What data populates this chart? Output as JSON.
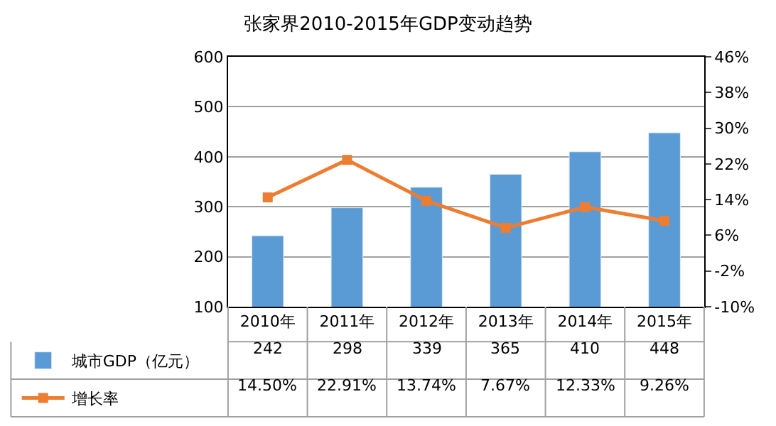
{
  "chart_data": {
    "type": "bar",
    "title": "张家界2010-2015年GDP变动趋势",
    "categories": [
      "2010年",
      "2011年",
      "2012年",
      "2013年",
      "2014年",
      "2015年"
    ],
    "series": [
      {
        "name": "城市GDP（亿元）",
        "color": "#5b9bd5",
        "values": [
          242,
          298,
          339,
          365,
          410,
          448
        ],
        "value_labels": [
          "242",
          "298",
          "339",
          "365",
          "410",
          "448"
        ]
      },
      {
        "name": "增长率",
        "type": "line",
        "axis": "y2",
        "color": "#ed7d31",
        "marker": "square",
        "values": [
          14.5,
          22.91,
          13.74,
          7.67,
          12.33,
          9.26
        ],
        "value_labels": [
          "14.50%",
          "22.91%",
          "13.74%",
          "7.67%",
          "12.33%",
          "9.26%"
        ]
      }
    ],
    "ylim": [
      100,
      600
    ],
    "yticks": [
      100,
      200,
      300,
      400,
      500,
      600
    ],
    "y2lim": [
      -10,
      46
    ],
    "y2ticks": [
      {
        "value": -10,
        "label": "-10%"
      },
      {
        "value": -2,
        "label": "-2%"
      },
      {
        "value": 6,
        "label": "6%"
      },
      {
        "value": 14,
        "label": "14%"
      },
      {
        "value": 22,
        "label": "22%"
      },
      {
        "value": 30,
        "label": "30%"
      },
      {
        "value": 38,
        "label": "38%"
      },
      {
        "value": 46,
        "label": "46%"
      }
    ],
    "grid": "y",
    "legend": "bottom"
  }
}
